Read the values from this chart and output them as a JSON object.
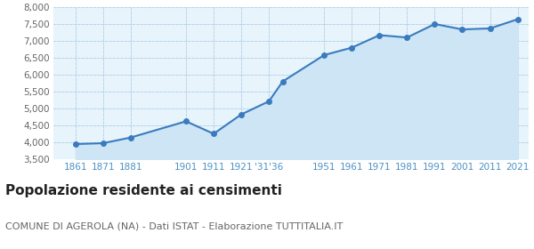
{
  "years": [
    1861,
    1871,
    1881,
    1901,
    1911,
    1921,
    1931,
    1936,
    1951,
    1961,
    1971,
    1981,
    1991,
    2001,
    2011,
    2021
  ],
  "population": [
    3953,
    3979,
    4148,
    4627,
    4258,
    4832,
    5220,
    5810,
    6590,
    6810,
    7180,
    7110,
    7510,
    7350,
    7380,
    7650
  ],
  "ylim": [
    3500,
    8000
  ],
  "yticks": [
    3500,
    4000,
    4500,
    5000,
    5500,
    6000,
    6500,
    7000,
    7500,
    8000
  ],
  "line_color": "#3a7bbf",
  "fill_color": "#cde5f5",
  "marker_color": "#3a7bbf",
  "bg_color": "#e8f4fb",
  "title": "Popolazione residente ai censimenti",
  "subtitle": "COMUNE DI AGEROLA (NA) - Dati ISTAT - Elaborazione TUTTITALIA.IT",
  "title_fontsize": 11,
  "subtitle_fontsize": 8,
  "grid_color": "#b0d0e8",
  "tick_color": "#4a90c4",
  "x_positions": [
    1861,
    1871,
    1881,
    1901,
    1911,
    1921,
    1931,
    1951,
    1961,
    1971,
    1981,
    1991,
    2001,
    2011,
    2021
  ],
  "x_labels": [
    "1861",
    "1871",
    "1881",
    "1901",
    "1911",
    "1921",
    "'31'36",
    "1951",
    "1961",
    "1971",
    "1981",
    "1991",
    "2001",
    "2011",
    "2021"
  ],
  "xlim_left": 1853,
  "xlim_right": 2025
}
